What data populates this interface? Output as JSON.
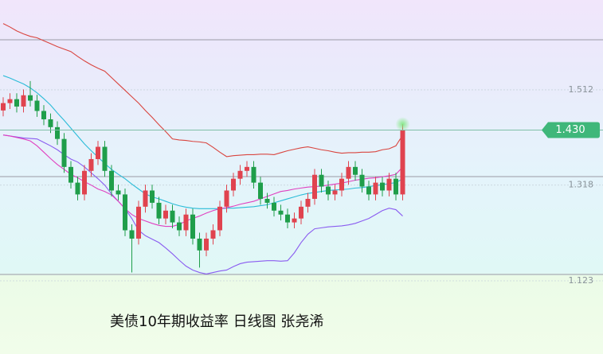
{
  "chart_data": {
    "type": "candlestick",
    "title": "美债10年期收益率 日线图 张尧浠",
    "ylim": [
      0.974,
      1.695
    ],
    "yticks": [
      1.123,
      1.318,
      1.512
    ],
    "last_price": {
      "value": 1.43,
      "label": "1.430"
    },
    "up_color": "#e0434f",
    "down_color": "#1f9e4a",
    "open": [
      1.47,
      1.485,
      1.493,
      1.478,
      1.501,
      1.49,
      1.469,
      1.452,
      1.436,
      1.412,
      1.355,
      1.323,
      1.299,
      1.347,
      1.371,
      1.396,
      1.347,
      1.307,
      1.299,
      1.226,
      1.209,
      1.274,
      1.307,
      1.282,
      1.25,
      1.266,
      1.242,
      1.226,
      1.258,
      1.209,
      1.185,
      1.209,
      1.226,
      1.274,
      1.307,
      1.331,
      1.347,
      1.355,
      1.323,
      1.29,
      1.282,
      1.266,
      1.258,
      1.242,
      1.25,
      1.274,
      1.29,
      1.339,
      1.315,
      1.299,
      1.307,
      1.331,
      1.355,
      1.339,
      1.315,
      1.299,
      1.323,
      1.307,
      1.331,
      1.299
    ],
    "high": [
      1.497,
      1.505,
      1.505,
      1.513,
      1.53,
      1.502,
      1.481,
      1.464,
      1.448,
      1.424,
      1.367,
      1.335,
      1.359,
      1.383,
      1.408,
      1.408,
      1.359,
      1.319,
      1.311,
      1.238,
      1.286,
      1.319,
      1.319,
      1.294,
      1.278,
      1.278,
      1.254,
      1.27,
      1.27,
      1.221,
      1.221,
      1.238,
      1.286,
      1.319,
      1.343,
      1.359,
      1.367,
      1.367,
      1.335,
      1.302,
      1.294,
      1.278,
      1.27,
      1.262,
      1.286,
      1.302,
      1.351,
      1.351,
      1.327,
      1.319,
      1.343,
      1.367,
      1.367,
      1.351,
      1.327,
      1.335,
      1.335,
      1.343,
      1.343,
      1.442
    ],
    "low": [
      1.458,
      1.473,
      1.466,
      1.466,
      1.478,
      1.457,
      1.44,
      1.424,
      1.4,
      1.343,
      1.311,
      1.287,
      1.287,
      1.335,
      1.359,
      1.335,
      1.295,
      1.287,
      1.214,
      1.14,
      1.197,
      1.262,
      1.27,
      1.238,
      1.238,
      1.23,
      1.214,
      1.214,
      1.197,
      1.15,
      1.173,
      1.197,
      1.214,
      1.262,
      1.295,
      1.319,
      1.335,
      1.311,
      1.278,
      1.27,
      1.254,
      1.246,
      1.23,
      1.23,
      1.238,
      1.262,
      1.278,
      1.303,
      1.287,
      1.287,
      1.295,
      1.319,
      1.327,
      1.303,
      1.287,
      1.287,
      1.295,
      1.295,
      1.287,
      1.287
    ],
    "close": [
      1.485,
      1.493,
      1.478,
      1.501,
      1.49,
      1.469,
      1.452,
      1.436,
      1.412,
      1.355,
      1.323,
      1.299,
      1.347,
      1.371,
      1.396,
      1.347,
      1.307,
      1.299,
      1.226,
      1.209,
      1.274,
      1.307,
      1.282,
      1.25,
      1.266,
      1.242,
      1.226,
      1.258,
      1.209,
      1.185,
      1.209,
      1.226,
      1.274,
      1.307,
      1.331,
      1.347,
      1.355,
      1.323,
      1.29,
      1.282,
      1.266,
      1.258,
      1.242,
      1.25,
      1.274,
      1.29,
      1.339,
      1.315,
      1.299,
      1.307,
      1.331,
      1.355,
      1.339,
      1.315,
      1.299,
      1.323,
      1.307,
      1.331,
      1.299,
      1.43
    ],
    "series": [
      {
        "color": "#d9453f",
        "values": [
          1.647,
          1.64,
          1.632,
          1.626,
          1.621,
          1.618,
          1.612,
          1.606,
          1.6,
          1.595,
          1.59,
          1.58,
          1.571,
          1.563,
          1.556,
          1.55,
          1.537,
          1.524,
          1.511,
          1.498,
          1.485,
          1.47,
          1.456,
          1.441,
          1.427,
          1.412,
          1.41,
          1.409,
          1.407,
          1.406,
          1.404,
          1.395,
          1.385,
          1.376,
          1.378,
          1.379,
          1.38,
          1.38,
          1.381,
          1.381,
          1.38,
          1.384,
          1.388,
          1.391,
          1.394,
          1.396,
          1.393,
          1.39,
          1.388,
          1.385,
          1.383,
          1.384,
          1.384,
          1.385,
          1.385,
          1.386,
          1.39,
          1.392,
          1.398,
          1.42
        ]
      },
      {
        "color": "#8a5cf0",
        "values": [
          1.42,
          1.418,
          1.416,
          1.414,
          1.413,
          1.412,
          1.405,
          1.398,
          1.39,
          1.38,
          1.371,
          1.365,
          1.355,
          1.343,
          1.331,
          1.318,
          1.3,
          1.285,
          1.27,
          1.25,
          1.226,
          1.215,
          1.208,
          1.201,
          1.19,
          1.178,
          1.165,
          1.153,
          1.145,
          1.14,
          1.137,
          1.14,
          1.143,
          1.145,
          1.152,
          1.158,
          1.161,
          1.162,
          1.163,
          1.164,
          1.164,
          1.163,
          1.164,
          1.18,
          1.201,
          1.218,
          1.229,
          1.231,
          1.233,
          1.234,
          1.235,
          1.237,
          1.24,
          1.245,
          1.25,
          1.258,
          1.266,
          1.271,
          1.268,
          1.255
        ]
      },
      {
        "color": "#2bbcd8",
        "values": [
          1.541,
          1.536,
          1.53,
          1.524,
          1.516,
          1.506,
          1.494,
          1.481,
          1.465,
          1.45,
          1.434,
          1.418,
          1.402,
          1.388,
          1.375,
          1.362,
          1.35,
          1.34,
          1.331,
          1.32,
          1.31,
          1.3,
          1.294,
          1.29,
          1.285,
          1.28,
          1.276,
          1.273,
          1.271,
          1.27,
          1.27,
          1.27,
          1.27,
          1.271,
          1.271,
          1.272,
          1.273,
          1.274,
          1.276,
          1.278,
          1.282,
          1.286,
          1.29,
          1.294,
          1.298,
          1.301,
          1.303,
          1.305,
          1.307,
          1.308,
          1.309,
          1.31,
          1.312,
          1.313,
          1.315,
          1.317,
          1.319,
          1.321,
          1.323,
          1.331
        ]
      },
      {
        "color": "#e040c0",
        "values": [
          1.42,
          1.418,
          1.415,
          1.412,
          1.408,
          1.398,
          1.385,
          1.372,
          1.36,
          1.35,
          1.34,
          1.333,
          1.325,
          1.318,
          1.31,
          1.305,
          1.298,
          1.285,
          1.27,
          1.258,
          1.25,
          1.245,
          1.24,
          1.236,
          1.234,
          1.234,
          1.238,
          1.245,
          1.25,
          1.255,
          1.261,
          1.266,
          1.27,
          1.272,
          1.275,
          1.279,
          1.282,
          1.285,
          1.29,
          1.295,
          1.3,
          1.305,
          1.307,
          1.31,
          1.312,
          1.314,
          1.315,
          1.316,
          1.318,
          1.32,
          1.322,
          1.325,
          1.328,
          1.33,
          1.332,
          1.333,
          1.335,
          1.337,
          1.34,
          1.355
        ]
      }
    ]
  }
}
